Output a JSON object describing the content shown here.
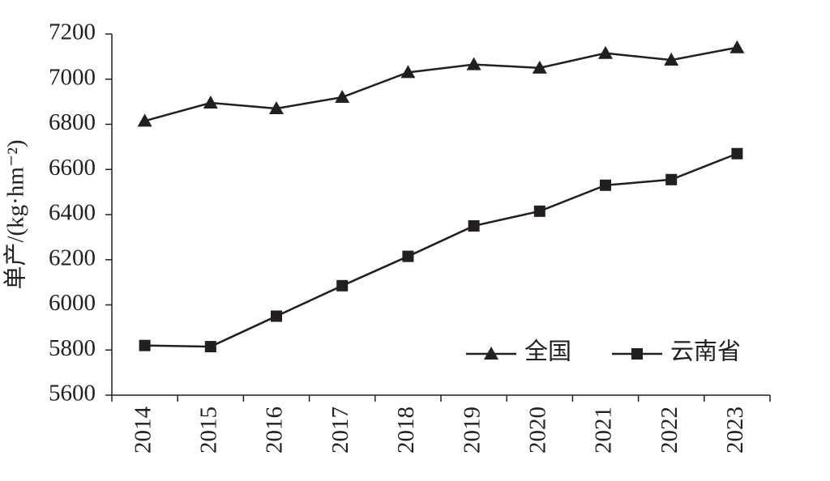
{
  "chart_data": {
    "type": "line",
    "y_label": "单产/(kg·hm⁻²)",
    "categories": [
      "2014",
      "2015",
      "2016",
      "2017",
      "2018",
      "2019",
      "2020",
      "2021",
      "2022",
      "2023"
    ],
    "series": [
      {
        "name": "全国",
        "color": "#231f20",
        "marker": "triangle",
        "values": [
          6815,
          6895,
          6870,
          6920,
          7030,
          7065,
          7050,
          7115,
          7085,
          7140
        ]
      },
      {
        "name": "云南省",
        "color": "#231f20",
        "marker": "square",
        "values": [
          5820,
          5815,
          5950,
          6085,
          6215,
          6350,
          6415,
          6530,
          6555,
          6670
        ]
      }
    ],
    "ylim": [
      5600,
      7200
    ],
    "yticks": [
      5600,
      5800,
      6000,
      6200,
      6400,
      6600,
      6800,
      7000,
      7200
    ],
    "grid": false,
    "legend": "lower right"
  }
}
